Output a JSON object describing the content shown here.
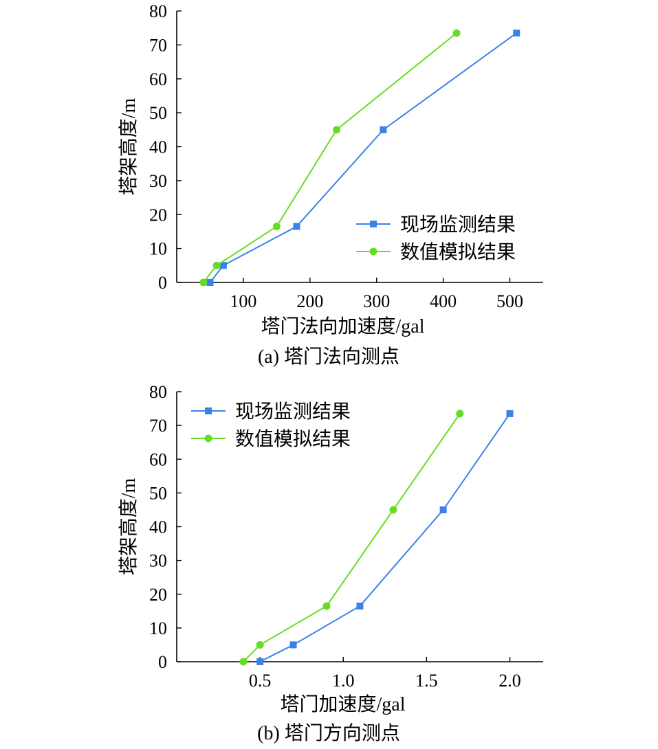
{
  "chart_data": [
    {
      "type": "line",
      "caption": "(a)  塔门法向测点",
      "xlabel": "塔门法向加速度/gal",
      "ylabel": "塔架高度/m",
      "xlim": [
        0,
        550
      ],
      "ylim": [
        0,
        80
      ],
      "xticks": [
        100,
        200,
        300,
        400,
        500
      ],
      "xtick_labels": [
        "100",
        "200",
        "300",
        "400",
        "500"
      ],
      "yticks": [
        0,
        10,
        20,
        30,
        40,
        50,
        60,
        70,
        80
      ],
      "ytick_labels": [
        "0",
        "10",
        "20",
        "30",
        "40",
        "50",
        "60",
        "70",
        "80"
      ],
      "legend_position": "center-right",
      "series": [
        {
          "name": "现场监测结果",
          "color": "#3b82e8",
          "marker": "square",
          "points": [
            [
              50,
              0
            ],
            [
              70,
              5
            ],
            [
              180,
              16.5
            ],
            [
              310,
              45
            ],
            [
              510,
              73.5
            ]
          ]
        },
        {
          "name": "数值模拟结果",
          "color": "#66dd22",
          "marker": "circle",
          "points": [
            [
              40,
              0
            ],
            [
              60,
              5
            ],
            [
              150,
              16.5
            ],
            [
              240,
              45
            ],
            [
              420,
              73.5
            ]
          ]
        }
      ]
    },
    {
      "type": "line",
      "caption": "(b)  塔门方向测点",
      "xlabel": "塔门加速度/gal",
      "ylabel": "塔架高度/m",
      "xlim": [
        0,
        2.2
      ],
      "ylim": [
        0,
        80
      ],
      "xticks": [
        0.5,
        1.0,
        1.5,
        2.0
      ],
      "xtick_labels": [
        "0.5",
        "1.0",
        "1.5",
        "2.0"
      ],
      "yticks": [
        0,
        10,
        20,
        30,
        40,
        50,
        60,
        70,
        80
      ],
      "ytick_labels": [
        "0",
        "10",
        "20",
        "30",
        "40",
        "50",
        "60",
        "70",
        "80"
      ],
      "legend_position": "top-left",
      "series": [
        {
          "name": "现场监测结果",
          "color": "#3b82e8",
          "marker": "square",
          "points": [
            [
              0.5,
              0
            ],
            [
              0.7,
              5
            ],
            [
              1.1,
              16.5
            ],
            [
              1.6,
              45
            ],
            [
              2.0,
              73.5
            ]
          ]
        },
        {
          "name": "数值模拟结果",
          "color": "#66dd22",
          "marker": "circle",
          "points": [
            [
              0.4,
              0
            ],
            [
              0.5,
              5
            ],
            [
              0.9,
              16.5
            ],
            [
              1.3,
              45
            ],
            [
              1.7,
              73.5
            ]
          ]
        }
      ]
    }
  ]
}
